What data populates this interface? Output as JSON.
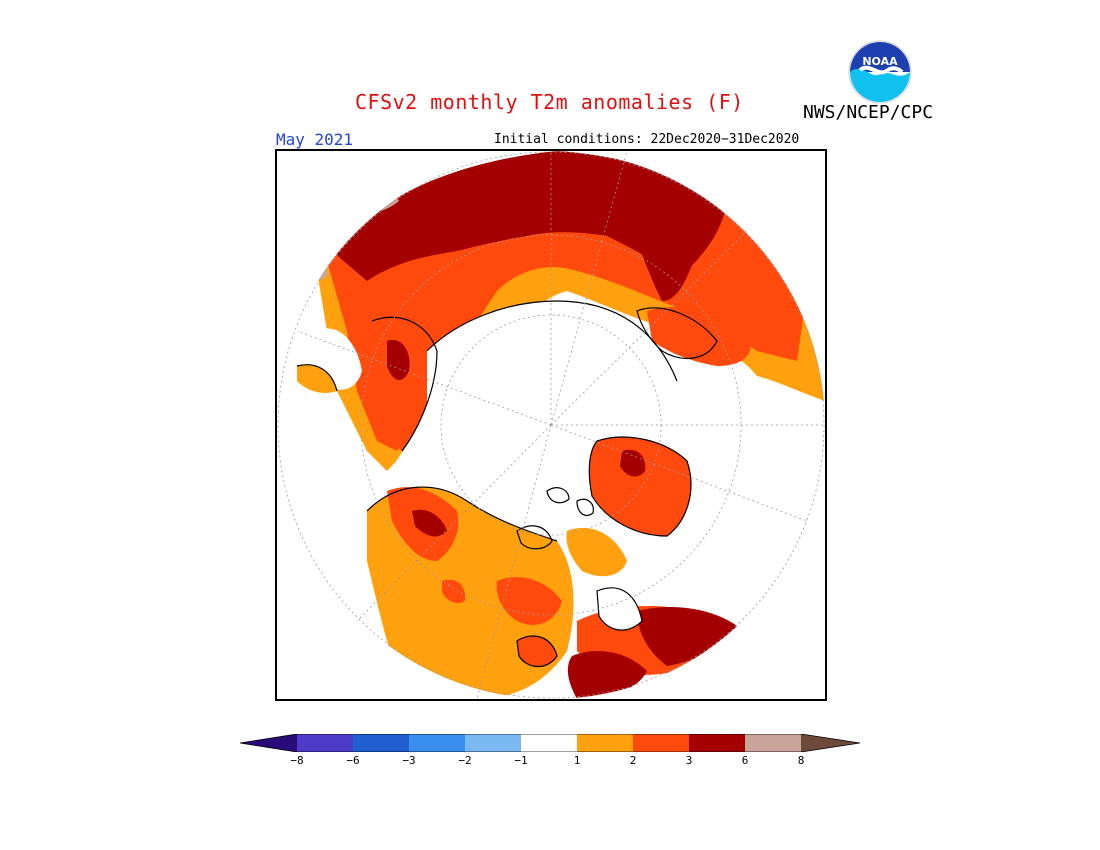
{
  "title": "CFSv2 monthly T2m anomalies (F)",
  "agency": "NWS/NCEP/CPC",
  "logo_text": "NOAA",
  "month": "May 2021",
  "initial_conditions": "Initial conditions: 22Dec2020−31Dec2020",
  "map": {
    "projection": "north-polar-stereographic",
    "background": "#ffffff",
    "coastline_color": "#000000",
    "grid_color": "#999999"
  },
  "colorbar": {
    "tick_labels": [
      "−8",
      "−6",
      "−3",
      "−2",
      "−1",
      "1",
      "2",
      "3",
      "6",
      "8"
    ],
    "bins": [
      {
        "range": "< -8",
        "color": "#2a0a78"
      },
      {
        "range": "-8 to -6",
        "color": "#4b3bc8"
      },
      {
        "range": "-6 to -3",
        "color": "#1f5fd0"
      },
      {
        "range": "-3 to -2",
        "color": "#3a8ef0"
      },
      {
        "range": "-2 to -1",
        "color": "#7ab8f2"
      },
      {
        "range": "-1 to 1",
        "color": "#ffffff"
      },
      {
        "range": "1 to 2",
        "color": "#ffa10f"
      },
      {
        "range": "2 to 3",
        "color": "#ff4a0e"
      },
      {
        "range": "3 to 6",
        "color": "#a40000"
      },
      {
        "range": "6 to 8",
        "color": "#c8a49a"
      },
      {
        "range": "> 8",
        "color": "#6e4a3a"
      }
    ]
  }
}
